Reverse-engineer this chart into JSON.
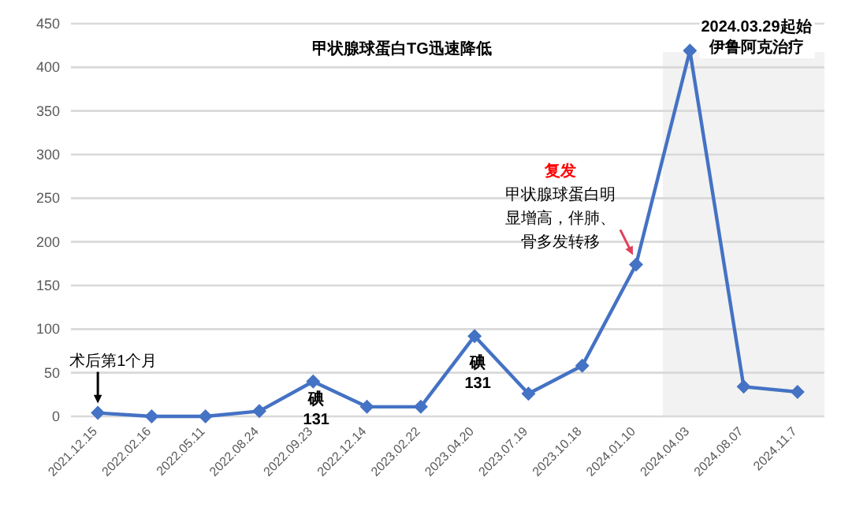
{
  "chart_data": {
    "type": "line",
    "title": "甲状腺球蛋白TG迅速降低",
    "categories": [
      "2021.12.15",
      "2022.02.16",
      "2022.05.11",
      "2022.08.24",
      "2022.09.23",
      "2022.12.14",
      "2023.02.22",
      "2023.04.20",
      "2023.07.19",
      "2023.10.18",
      "2024.01.10",
      "2024.04.03",
      "2024.08.07",
      "2024.11.7"
    ],
    "series": [
      {
        "color": "#4472c4",
        "values": [
          4,
          0,
          0,
          6,
          40,
          11,
          11,
          92,
          26,
          58,
          174,
          419,
          34,
          28
        ]
      }
    ],
    "ylim": [
      0,
      450
    ],
    "yticks": [
      0,
      50,
      100,
      150,
      200,
      250,
      300,
      350,
      400,
      450
    ],
    "grid": "y",
    "marker": "diamond",
    "line_style": "solid",
    "annotations": [
      {
        "text": "术后第1个月",
        "x": "2021.12.15",
        "y": 4
      },
      {
        "text": "碘\n131",
        "x": "2022.09.23",
        "y": 40
      },
      {
        "text": "碘\n131",
        "x": "2023.04.20",
        "y": 92
      },
      "复发",
      {
        "text": "甲状腺球蛋白明显增高，伴肺、骨多发转移",
        "x": "2024.01.10",
        "y": 174
      }
    ],
    "bands": [
      {
        "axis": "x",
        "from": "2024.04.03",
        "to": "2024.11.7",
        "label": "2024.03.29起始伊鲁阿克治疗",
        "color": "#f2f2f2"
      }
    ]
  }
}
